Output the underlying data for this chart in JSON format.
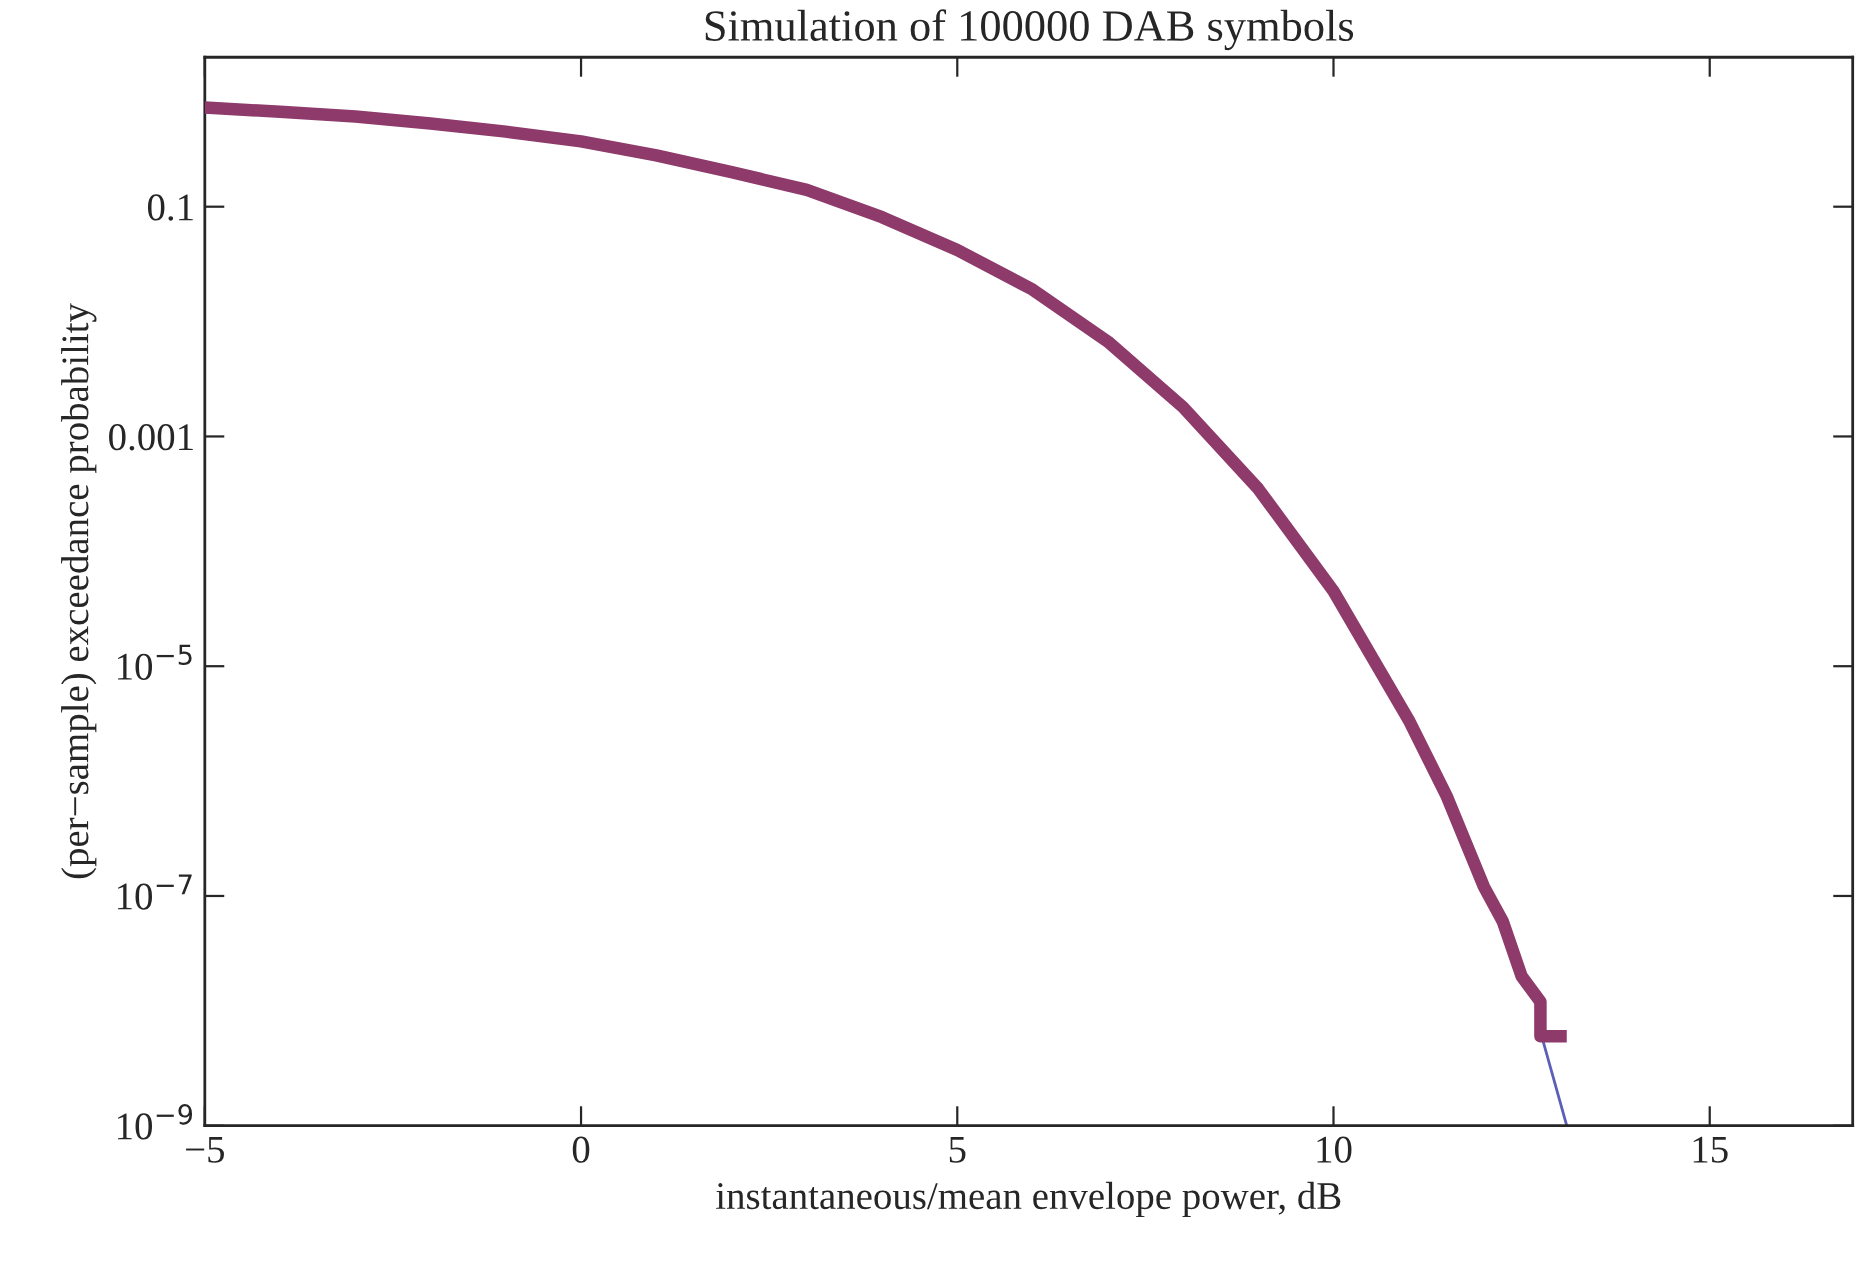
{
  "chart_data": {
    "type": "line",
    "title": "Simulation of 100000 DAB symbols",
    "xlabel": "instantaneous/mean envelope power, dB",
    "ylabel": "(per−sample) exceedance probability",
    "log": "y",
    "xlim": [
      -5,
      16.9
    ],
    "xticks": [
      {
        "value": -5,
        "label": "−5"
      },
      0,
      5,
      10,
      15
    ],
    "ylim": [
      1e-09,
      2
    ],
    "yticks": [
      0.1,
      0.001,
      {
        "value": 1e-05,
        "label": "10$^{−5}$"
      },
      {
        "value": 1e-07,
        "label": "10$^{−7}$"
      },
      {
        "value": 1e-09,
        "label": "10$^{−9}$"
      }
    ],
    "grid": false,
    "series": [
      {
        "color": "#5b5fb8",
        "x": [
          12.75,
          13.1
        ],
        "values": [
          6.6e-09,
          1e-09
        ]
      },
      {
        "color": "#8e3a6b",
        "x": [
          -5,
          -4,
          -3,
          -2,
          -1,
          0,
          1,
          2,
          3,
          4,
          5,
          6,
          7,
          8,
          9,
          10,
          11,
          11.5,
          12,
          12.25,
          12.5,
          12.75,
          12.75,
          13.1
        ],
        "values": [
          0.73,
          0.67,
          0.61,
          0.53,
          0.45,
          0.37,
          0.28,
          0.2,
          0.14,
          0.081,
          0.042,
          0.019,
          0.0067,
          0.0018,
          0.00035,
          4.5e-05,
          3.4e-06,
          7.5e-07,
          1.2e-07,
          6e-08,
          2e-08,
          1.2e-08,
          6e-09,
          6e-09
        ]
      }
    ]
  }
}
